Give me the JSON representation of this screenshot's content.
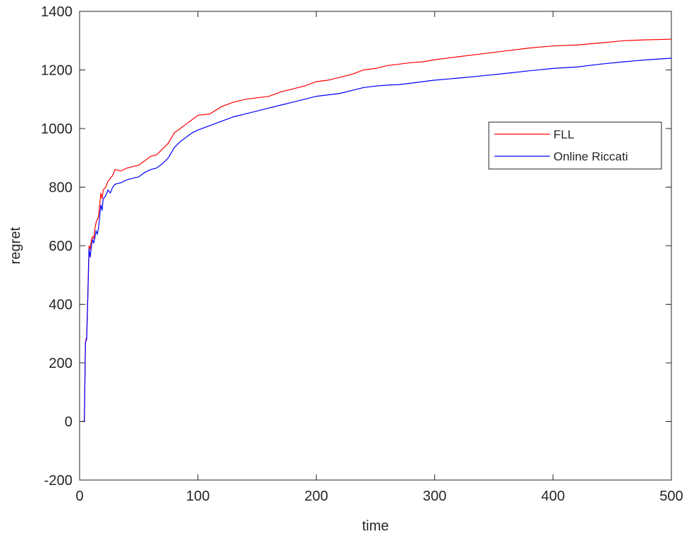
{
  "chart_data": {
    "type": "line",
    "title": "",
    "xlabel": "time",
    "ylabel": "regret",
    "xlim": [
      0,
      500
    ],
    "ylim": [
      -200,
      1400
    ],
    "xticks": [
      0,
      100,
      200,
      300,
      400,
      500
    ],
    "yticks": [
      -200,
      0,
      200,
      400,
      600,
      800,
      1000,
      1200,
      1400
    ],
    "grid": false,
    "legend_position": "upper-right",
    "series": [
      {
        "name": "FLL",
        "color": "#ff0000",
        "x": [
          2,
          4,
          5,
          6,
          7,
          8,
          9,
          10,
          11,
          12,
          13,
          14,
          15,
          16,
          17,
          18,
          19,
          20,
          22,
          24,
          26,
          28,
          30,
          35,
          40,
          45,
          50,
          55,
          60,
          65,
          70,
          75,
          80,
          85,
          90,
          95,
          100,
          110,
          120,
          130,
          140,
          150,
          160,
          170,
          180,
          190,
          200,
          210,
          220,
          230,
          240,
          250,
          260,
          270,
          280,
          290,
          300,
          320,
          340,
          360,
          380,
          400,
          420,
          440,
          460,
          480,
          500
        ],
        "y": [
          0,
          0,
          270,
          290,
          440,
          600,
          590,
          620,
          630,
          625,
          660,
          680,
          690,
          700,
          740,
          780,
          760,
          790,
          800,
          820,
          830,
          840,
          860,
          855,
          865,
          870,
          875,
          890,
          905,
          910,
          930,
          950,
          985,
          1000,
          1015,
          1030,
          1045,
          1050,
          1075,
          1090,
          1100,
          1105,
          1110,
          1125,
          1135,
          1145,
          1160,
          1165,
          1175,
          1185,
          1200,
          1205,
          1215,
          1220,
          1225,
          1228,
          1235,
          1245,
          1255,
          1265,
          1275,
          1282,
          1285,
          1292,
          1300,
          1303,
          1305
        ]
      },
      {
        "name": "Online Riccati",
        "color": "#0000ff",
        "x": [
          2,
          4,
          5,
          6,
          7,
          8,
          9,
          10,
          11,
          12,
          13,
          14,
          15,
          16,
          17,
          18,
          19,
          20,
          22,
          24,
          26,
          28,
          30,
          35,
          40,
          45,
          50,
          55,
          60,
          65,
          70,
          75,
          80,
          85,
          90,
          95,
          100,
          110,
          120,
          130,
          140,
          150,
          160,
          170,
          180,
          190,
          200,
          210,
          220,
          230,
          240,
          250,
          260,
          270,
          280,
          290,
          300,
          320,
          340,
          360,
          380,
          400,
          420,
          440,
          460,
          480,
          500
        ],
        "y": [
          0,
          0,
          270,
          280,
          430,
          590,
          560,
          600,
          620,
          610,
          630,
          650,
          640,
          660,
          700,
          740,
          720,
          760,
          770,
          790,
          780,
          800,
          810,
          815,
          825,
          830,
          835,
          850,
          860,
          865,
          880,
          900,
          935,
          955,
          970,
          985,
          995,
          1010,
          1025,
          1040,
          1050,
          1060,
          1070,
          1080,
          1090,
          1100,
          1110,
          1115,
          1120,
          1130,
          1140,
          1145,
          1148,
          1150,
          1155,
          1160,
          1165,
          1172,
          1180,
          1188,
          1197,
          1205,
          1210,
          1220,
          1228,
          1235,
          1240
        ]
      }
    ]
  }
}
